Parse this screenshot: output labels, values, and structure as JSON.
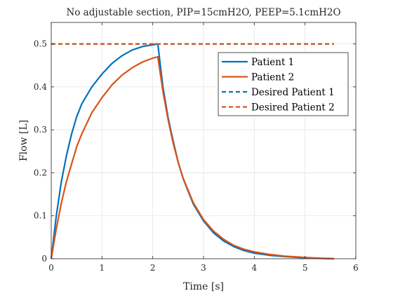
{
  "figure": {
    "background": "#ffffff"
  },
  "chart_data": {
    "type": "line",
    "title": "No adjustable section, PIP=15cmH2O, PEEP=5.1cmH2O",
    "xlabel": "Time [s]",
    "ylabel": "Flow [L]",
    "xlim": [
      0,
      6
    ],
    "ylim": [
      0,
      0.55
    ],
    "xticks": [
      0,
      1,
      2,
      3,
      4,
      5,
      6
    ],
    "yticks": [
      0,
      0.1,
      0.2,
      0.3,
      0.4,
      0.5
    ],
    "xtick_labels": [
      "0",
      "1",
      "2",
      "3",
      "4",
      "5",
      "6"
    ],
    "ytick_labels": [
      "0",
      "0.1",
      "0.2",
      "0.3",
      "0.4",
      "0.5"
    ],
    "grid": true,
    "legend_position": "top-right",
    "series": [
      {
        "name": "Patient 1",
        "color": "#0072bd",
        "style": "solid",
        "x": [
          0,
          0.1,
          0.2,
          0.3,
          0.4,
          0.5,
          0.6,
          0.8,
          1.0,
          1.2,
          1.4,
          1.6,
          1.8,
          2.0,
          2.1,
          2.2,
          2.3,
          2.4,
          2.5,
          2.6,
          2.8,
          3.0,
          3.2,
          3.4,
          3.6,
          3.8,
          4.0,
          4.3,
          4.6,
          5.0,
          5.3,
          5.57
        ],
        "y": [
          0.0,
          0.1,
          0.18,
          0.24,
          0.29,
          0.33,
          0.36,
          0.4,
          0.43,
          0.455,
          0.473,
          0.486,
          0.494,
          0.498,
          0.5,
          0.4,
          0.33,
          0.275,
          0.225,
          0.186,
          0.127,
          0.088,
          0.06,
          0.041,
          0.028,
          0.019,
          0.013,
          0.008,
          0.005,
          0.002,
          0.001,
          0.0
        ]
      },
      {
        "name": "Patient 2",
        "color": "#d95319",
        "style": "solid",
        "x": [
          0,
          0.1,
          0.2,
          0.3,
          0.4,
          0.5,
          0.6,
          0.8,
          1.0,
          1.2,
          1.4,
          1.6,
          1.8,
          2.0,
          2.1,
          2.2,
          2.3,
          2.4,
          2.5,
          2.6,
          2.8,
          3.0,
          3.2,
          3.4,
          3.6,
          3.8,
          4.0,
          4.3,
          4.6,
          5.0,
          5.3,
          5.57
        ],
        "y": [
          0.0,
          0.07,
          0.13,
          0.18,
          0.22,
          0.26,
          0.29,
          0.34,
          0.375,
          0.405,
          0.428,
          0.445,
          0.458,
          0.467,
          0.47,
          0.39,
          0.325,
          0.27,
          0.225,
          0.187,
          0.13,
          0.091,
          0.064,
          0.045,
          0.031,
          0.022,
          0.016,
          0.01,
          0.006,
          0.003,
          0.001,
          0.0
        ]
      },
      {
        "name": "Desired Patient 1",
        "color": "#0072bd",
        "style": "dashed",
        "x": [
          0,
          5.57
        ],
        "y": [
          0.5,
          0.5
        ]
      },
      {
        "name": "Desired Patient 2",
        "color": "#d95319",
        "style": "dashed",
        "x": [
          0,
          5.57
        ],
        "y": [
          0.5,
          0.5
        ]
      }
    ]
  }
}
